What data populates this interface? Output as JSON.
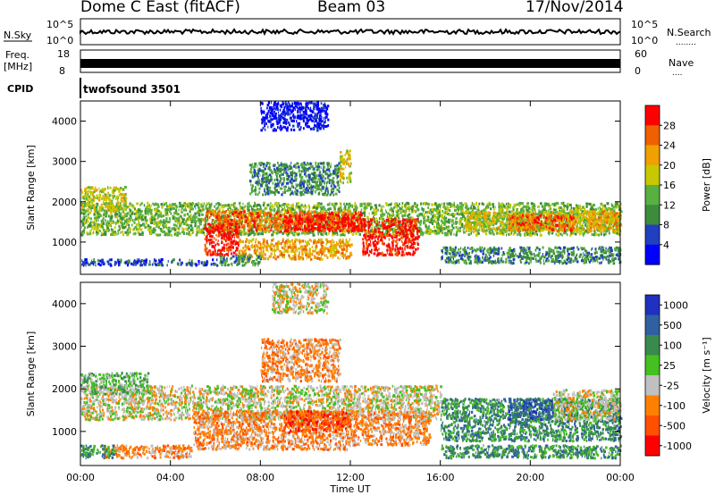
{
  "header": {
    "station": "Dome C East (fitACF)",
    "beam": "Beam 03",
    "date": "17/Nov/2014"
  },
  "labels": {
    "nsky": "N.Sky",
    "nsearch": "N.Search",
    "nsearch_dots": "........",
    "freq_l1": "Freq.",
    "freq_l2": "[MHz]",
    "nave": "Nave",
    "nave_dots": "....",
    "cpid": "CPID",
    "cpid_value": "twofsound 3501",
    "noise_top_left": "10^5",
    "noise_bot_left": "10^0",
    "noise_top_right": "10^5",
    "noise_bot_right": "10^0",
    "freq_top": "18",
    "freq_bot": "8",
    "nave_top": "60",
    "nave_bot": "0"
  },
  "colors": {
    "power_scale": [
      "#0000ff",
      "#2040c0",
      "#3c8c3c",
      "#58b040",
      "#c8c800",
      "#f0a000",
      "#f06000",
      "#ff0000"
    ],
    "velocity_scale": [
      "#2030c0",
      "#3060a0",
      "#3a8a50",
      "#44c020",
      "#c0c0c0",
      "#ff8000",
      "#ff5000",
      "#ff0000"
    ]
  },
  "chart_data": [
    {
      "type": "heatmap",
      "name": "power",
      "ylabel": "Slant Range [km]",
      "ylim": [
        200,
        4500
      ],
      "yticks": [
        "1000",
        "2000",
        "3000",
        "4000"
      ],
      "yticks_values": [
        1000,
        2000,
        3000,
        4000
      ],
      "xticks": [
        "00:00",
        "04:00",
        "08:00",
        "12:00",
        "16:00",
        "20:00",
        "00:00"
      ],
      "xlabel": "Time UT",
      "colorbar_label": "Power [dB]",
      "colorbar_ticks": [
        "4",
        "8",
        "12",
        "16",
        "20",
        "24",
        "28"
      ],
      "regions": [
        {
          "t0": 0,
          "t1": 24,
          "r0": 1200,
          "r1": 2000,
          "level": 3
        },
        {
          "t0": 5.5,
          "t1": 12.5,
          "r0": 1300,
          "r1": 1800,
          "level": 6
        },
        {
          "t0": 9,
          "t1": 12.5,
          "r0": 1300,
          "r1": 1700,
          "level": 7
        },
        {
          "t0": 12.5,
          "t1": 15,
          "r0": 700,
          "r1": 1600,
          "level": 7
        },
        {
          "t0": 5.5,
          "t1": 7,
          "r0": 700,
          "r1": 1500,
          "level": 7
        },
        {
          "t0": 7,
          "t1": 12,
          "r0": 600,
          "r1": 1100,
          "level": 5
        },
        {
          "t0": 0,
          "t1": 6,
          "r0": 450,
          "r1": 600,
          "level": 1
        },
        {
          "t0": 6,
          "t1": 8,
          "r0": 450,
          "r1": 700,
          "level": 2
        },
        {
          "t0": 17,
          "t1": 24,
          "r0": 1300,
          "r1": 1800,
          "level": 4
        },
        {
          "t0": 19,
          "t1": 22,
          "r0": 1300,
          "r1": 1700,
          "level": 6
        },
        {
          "t0": 22.5,
          "t1": 24,
          "r0": 1300,
          "r1": 1800,
          "level": 5
        },
        {
          "t0": 7.5,
          "t1": 11.5,
          "r0": 2200,
          "r1": 3000,
          "level": 2
        },
        {
          "t0": 8,
          "t1": 11,
          "r0": 3800,
          "r1": 4500,
          "level": 0
        },
        {
          "t0": 11.5,
          "t1": 12,
          "r0": 2500,
          "r1": 3300,
          "level": 4
        },
        {
          "t0": 16,
          "t1": 24,
          "r0": 500,
          "r1": 900,
          "level": 2
        },
        {
          "t0": 0,
          "t1": 2,
          "r0": 1800,
          "r1": 2400,
          "level": 4
        }
      ]
    },
    {
      "type": "heatmap",
      "name": "velocity",
      "ylabel": "Slant Range [km]",
      "ylim": [
        200,
        4500
      ],
      "yticks": [
        "1000",
        "2000",
        "3000",
        "4000"
      ],
      "yticks_values": [
        1000,
        2000,
        3000,
        4000
      ],
      "xticks": [
        "00:00",
        "04:00",
        "08:00",
        "12:00",
        "16:00",
        "20:00",
        "00:00"
      ],
      "xlabel": "Time UT",
      "colorbar_label": "Velocity [m s⁻¹]",
      "colorbar_ticks": [
        "1000",
        "500",
        "100",
        "25",
        "-25",
        "-100",
        "-500",
        "-1000"
      ],
      "regions": [
        {
          "t0": 0,
          "t1": 16,
          "r0": 1300,
          "r1": 2100,
          "level": 4
        },
        {
          "t0": 5,
          "t1": 12,
          "r0": 600,
          "r1": 1500,
          "level": 5
        },
        {
          "t0": 9,
          "t1": 12,
          "r0": 1000,
          "r1": 1500,
          "level": 6
        },
        {
          "t0": 1,
          "t1": 5,
          "r0": 400,
          "r1": 700,
          "level": 5
        },
        {
          "t0": 0,
          "t1": 1.5,
          "r0": 400,
          "r1": 700,
          "level": 2
        },
        {
          "t0": 16,
          "t1": 24,
          "r0": 800,
          "r1": 1800,
          "level": 2
        },
        {
          "t0": 19,
          "t1": 21,
          "r0": 1300,
          "r1": 1800,
          "level": 1
        },
        {
          "t0": 21,
          "t1": 24,
          "r0": 1300,
          "r1": 2000,
          "level": 4
        },
        {
          "t0": 12,
          "t1": 15.5,
          "r0": 700,
          "r1": 1500,
          "level": 5
        },
        {
          "t0": 8,
          "t1": 11.5,
          "r0": 2200,
          "r1": 3200,
          "level": 5
        },
        {
          "t0": 8.5,
          "t1": 11,
          "r0": 3800,
          "r1": 4500,
          "level": 4
        },
        {
          "t0": 16,
          "t1": 24,
          "r0": 400,
          "r1": 700,
          "level": 2
        },
        {
          "t0": 0,
          "t1": 3,
          "r0": 1900,
          "r1": 2400,
          "level": 3
        }
      ]
    }
  ]
}
